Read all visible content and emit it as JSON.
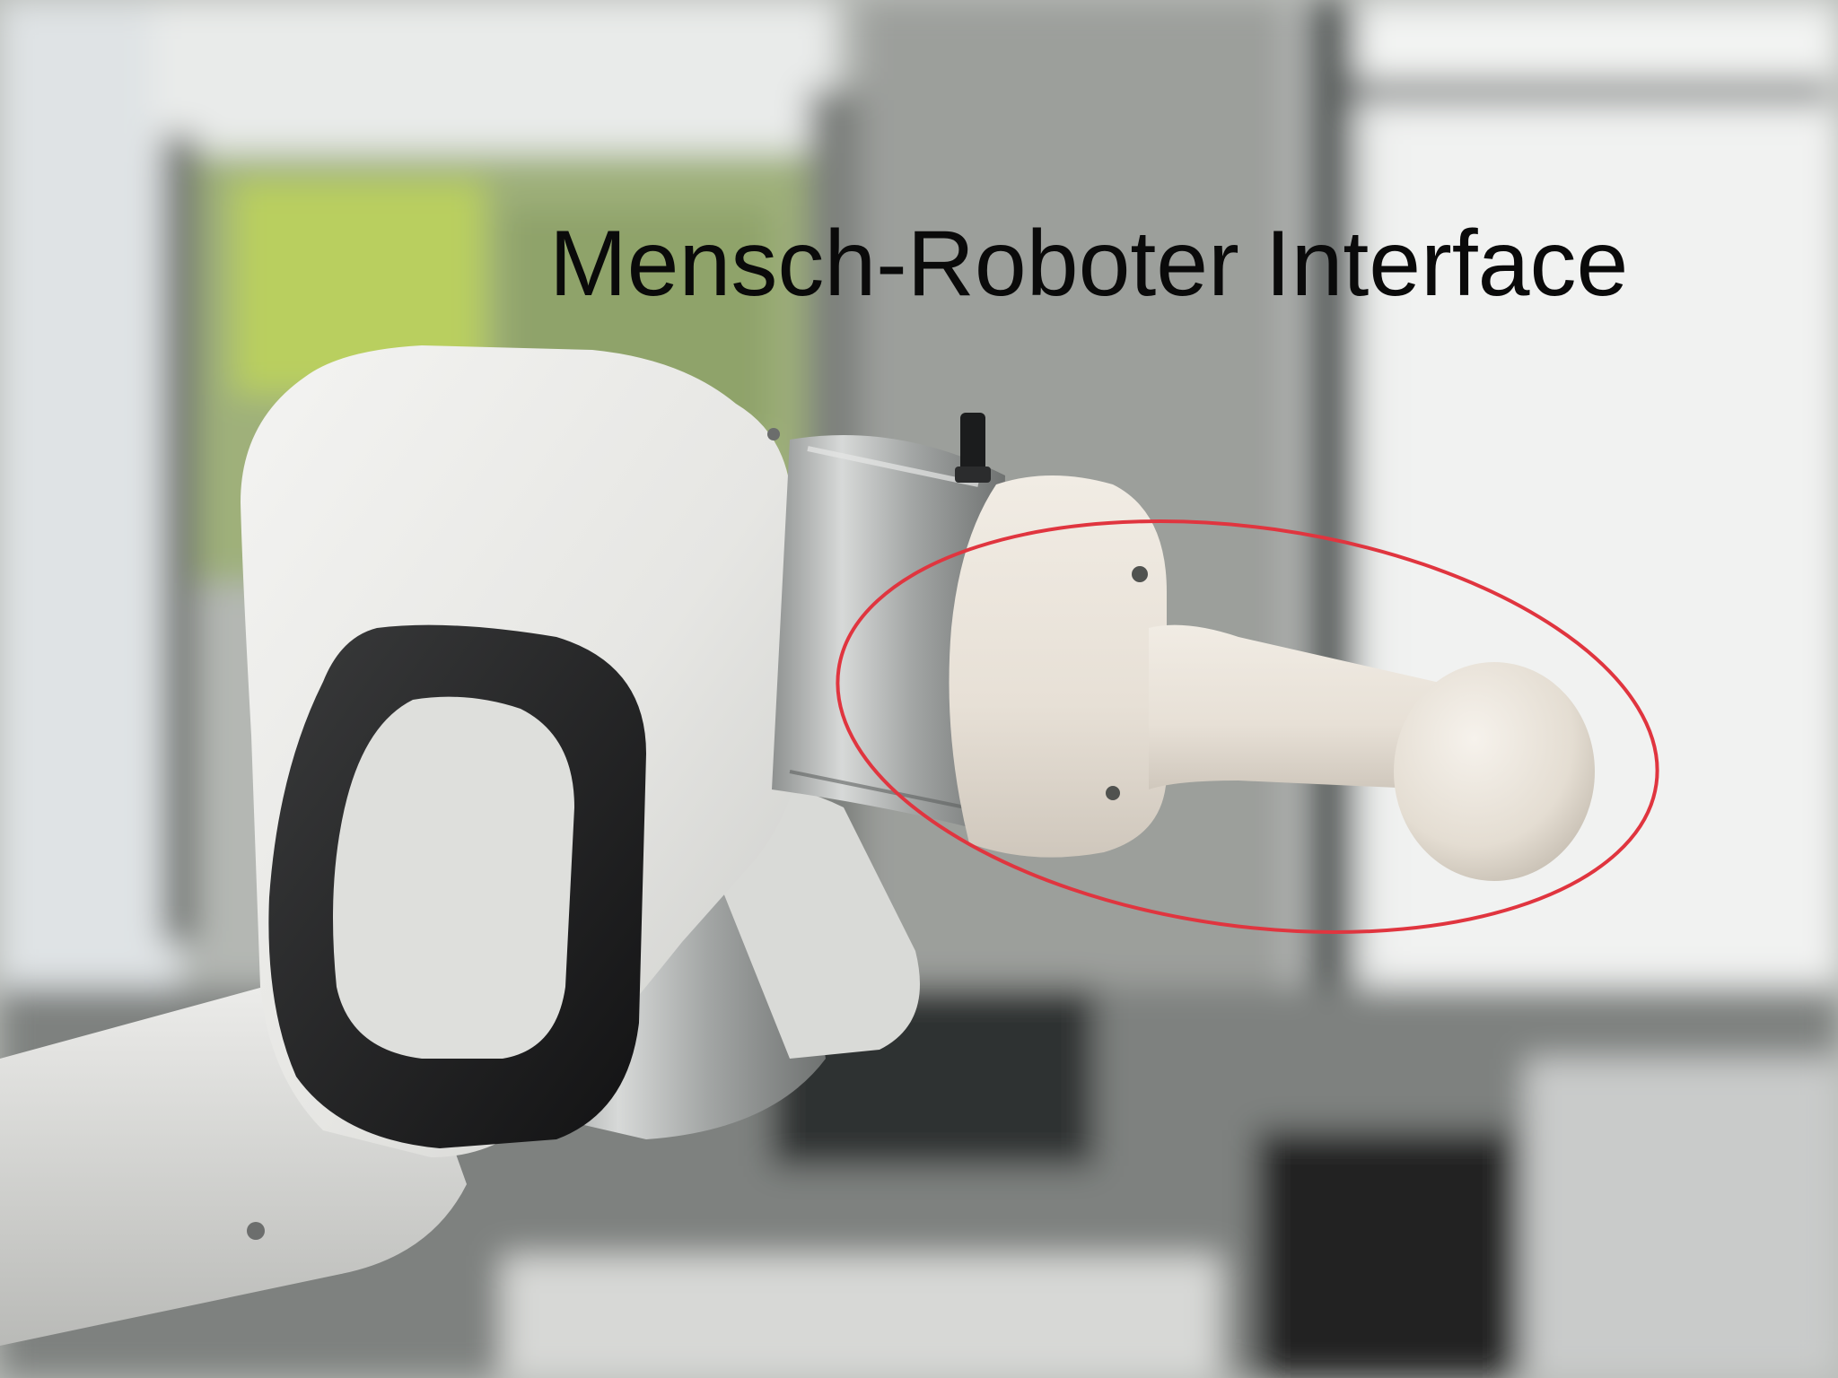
{
  "caption": "Mensch-Roboter Interface",
  "colors": {
    "highlight_ellipse": "#e0353f",
    "caption_text": "#0a0a0a",
    "robot_shell": "#e9e9e6",
    "robot_dark_pad": "#1e1f20",
    "handle": "#ece6dd",
    "metal_ring": "#b7b9b8"
  },
  "scene": {
    "subject": "robot-arm-end-effector",
    "highlighted_part": "handle-knob"
  }
}
